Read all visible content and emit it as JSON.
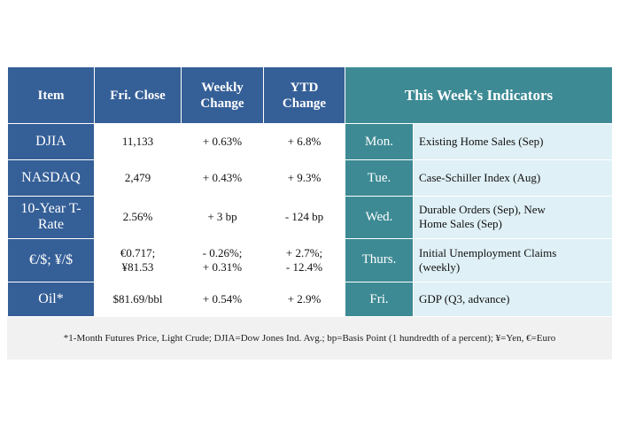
{
  "headers": {
    "item": "Item",
    "close": "Fri. Close",
    "weekly": [
      "Weekly",
      "Change"
    ],
    "ytd": [
      "YTD",
      "Change"
    ],
    "indicators": "This Week’s Indicators"
  },
  "rows": [
    {
      "item": [
        "DJIA"
      ],
      "close": [
        "11,133"
      ],
      "weekly": [
        "+ 0.63%"
      ],
      "ytd": [
        "+ 6.8%"
      ],
      "day": "Mon.",
      "indicator": [
        "Existing Home Sales (Sep)"
      ]
    },
    {
      "item": [
        "NASDAQ"
      ],
      "close": [
        "2,479"
      ],
      "weekly": [
        "+ 0.43%"
      ],
      "ytd": [
        "+ 9.3%"
      ],
      "day": "Tue.",
      "indicator": [
        "Case-Schiller Index (Aug)"
      ]
    },
    {
      "item": [
        "10-Year T-",
        "Rate"
      ],
      "close": [
        "2.56%"
      ],
      "weekly": [
        "+ 3 bp"
      ],
      "ytd": [
        "- 124 bp"
      ],
      "day": "Wed.",
      "indicator": [
        "Durable Orders (Sep), New",
        "Home Sales (Sep)"
      ]
    },
    {
      "item": [
        "€/$; ¥/$"
      ],
      "close": [
        "€0.717;",
        "¥81.53"
      ],
      "weekly": [
        "- 0.26%;",
        "+ 0.31%"
      ],
      "ytd": [
        "+ 2.7%;",
        "- 12.4%"
      ],
      "day": "Thurs.",
      "indicator": [
        "Initial Unemployment Claims",
        "(weekly)"
      ]
    },
    {
      "item": [
        "Oil*"
      ],
      "close": [
        "$81.69/bbl"
      ],
      "weekly": [
        "+ 0.54%"
      ],
      "ytd": [
        "+ 2.9%"
      ],
      "day": "Fri.",
      "indicator": [
        "GDP (Q3, advance)"
      ]
    }
  ],
  "footnote": "*1-Month Futures Price, Light Crude; DJIA=Dow Jones Ind. Avg.; bp=Basis Point (1 hundredth of a percent); ¥=Yen, €=Euro",
  "colors": {
    "navy": "#355f97",
    "teal": "#3d8a94",
    "light_teal": "#dff0f6"
  }
}
